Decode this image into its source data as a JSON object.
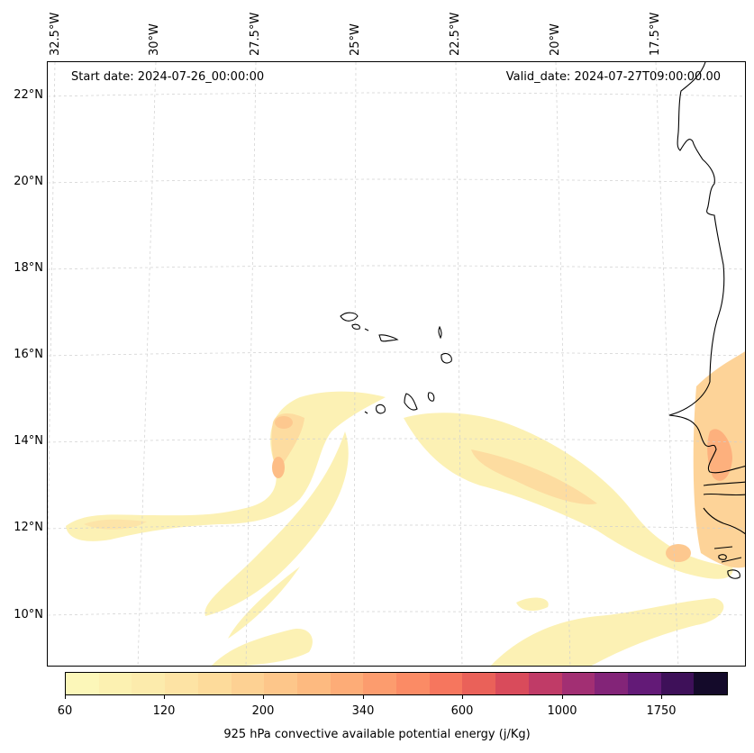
{
  "map": {
    "start_date": "Start date: 2024-07-26_00:00:00",
    "valid_date": "Valid_date: 2024-07-27T09:00:00.00",
    "longitude_labels": [
      "32.5°W",
      "30°W",
      "27.5°W",
      "25°W",
      "22.5°W",
      "20°W",
      "17.5°W"
    ],
    "latitude_labels": [
      "22°N",
      "20°N",
      "18°N",
      "16°N",
      "14°N",
      "12°N",
      "10°N"
    ],
    "gridlines": true,
    "coastlines": true
  },
  "colorbar": {
    "title": "925 hPa convective available potential energy (j/Kg)",
    "tick_labels": [
      "60",
      "120",
      "200",
      "340",
      "600",
      "1000",
      "1750"
    ],
    "colors": [
      "#fcf7b9",
      "#fcf1b1",
      "#fcebac",
      "#fde3a4",
      "#fddb9b",
      "#fdd193",
      "#fdc68a",
      "#fdba80",
      "#fdac77",
      "#fc9c6e",
      "#fb8b65",
      "#f6765e",
      "#ea6159",
      "#d94b5b",
      "#c03b67",
      "#a22f73",
      "#832478",
      "#631a77",
      "#3e1059",
      "#140a2a"
    ]
  }
}
